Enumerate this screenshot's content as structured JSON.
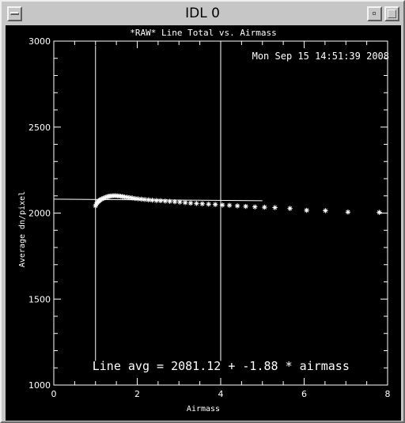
{
  "window": {
    "title": "IDL 0",
    "icons": {
      "menu": "window-menu-icon",
      "minimize": "minimize-icon",
      "maximize": "maximize-icon"
    }
  },
  "colors": {
    "background": "#000000",
    "foreground": "#ffffff",
    "frame": "#c6c6c6"
  },
  "chart_data": {
    "type": "scatter",
    "title": "*RAW* Line Total vs. Airmass",
    "timestamp": "Mon Sep 15 14:51:39 2008",
    "xlabel": "Airmass",
    "ylabel": "Average dn/pixel",
    "xlim": [
      0,
      8
    ],
    "ylim": [
      1000,
      3000
    ],
    "x_ticks": [
      0,
      2,
      4,
      6,
      8
    ],
    "x_tick_labels": [
      "0",
      "2",
      "4",
      "6",
      "8"
    ],
    "y_ticks": [
      1000,
      1500,
      2000,
      2500,
      3000
    ],
    "y_tick_labels": [
      "1000",
      "1500",
      "2000",
      "2500",
      "3000"
    ],
    "grid": false,
    "marker": "asterisk",
    "series": [
      {
        "x": [
          1.0,
          1.02,
          1.04,
          1.06,
          1.08,
          1.1,
          1.12,
          1.15,
          1.18,
          1.21,
          1.24,
          1.27,
          1.3,
          1.33,
          1.36,
          1.4,
          1.44,
          1.48,
          1.52,
          1.56,
          1.6,
          1.65,
          1.7,
          1.76,
          1.82,
          1.88,
          1.95,
          2.02,
          2.1,
          2.18,
          2.27,
          2.36,
          2.46,
          2.56,
          2.67,
          2.78,
          2.9,
          3.02,
          3.15,
          3.28,
          3.42,
          3.56,
          3.71,
          3.87,
          4.04,
          4.21,
          4.4,
          4.6,
          4.82,
          5.05,
          5.3,
          5.66,
          6.06,
          6.51,
          7.05,
          7.8
        ],
        "y": [
          2042,
          2052,
          2060,
          2066,
          2070,
          2074,
          2078,
          2082,
          2085,
          2088,
          2091,
          2094,
          2096,
          2098,
          2099,
          2100,
          2101,
          2101,
          2100,
          2099,
          2098,
          2096,
          2094,
          2092,
          2090,
          2088,
          2085,
          2083,
          2081,
          2079,
          2077,
          2075,
          2073,
          2072,
          2070,
          2068,
          2066,
          2064,
          2061,
          2058,
          2056,
          2054,
          2052,
          2050,
          2047,
          2045,
          2042,
          2039,
          2036,
          2034,
          2032,
          2027,
          2016,
          2014,
          2006,
          2004
        ]
      }
    ],
    "fit": {
      "intercept": 2081.12,
      "slope": -1.88,
      "x_range": [
        0,
        5
      ]
    },
    "markers_x": [
      1,
      4
    ],
    "annotation": "Line avg = 2081.12 + -1.88 * airmass"
  }
}
